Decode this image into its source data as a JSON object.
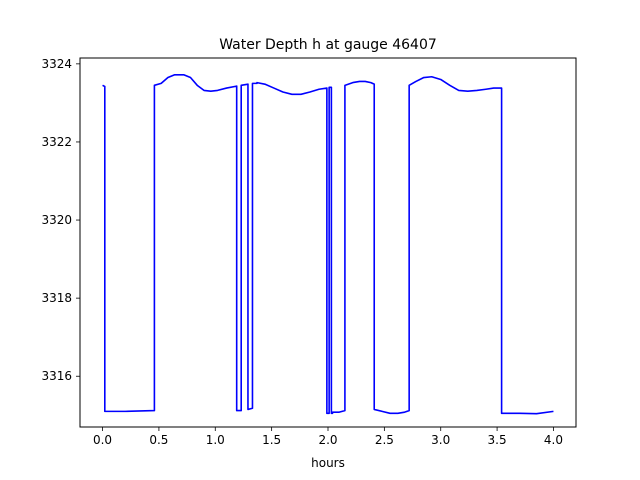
{
  "chart_data": {
    "type": "line",
    "title": "Water Depth h at gauge 46407",
    "xlabel": "hours",
    "ylabel": "",
    "xlim": [
      -0.2,
      4.2
    ],
    "ylim": [
      3314.7,
      3324.15
    ],
    "x_ticks": [
      0.0,
      0.5,
      1.0,
      1.5,
      2.0,
      2.5,
      3.0,
      3.5,
      4.0
    ],
    "x_tick_labels": [
      "0.0",
      "0.5",
      "1.0",
      "1.5",
      "2.0",
      "2.5",
      "3.0",
      "3.5",
      "4.0"
    ],
    "y_ticks": [
      3316,
      3318,
      3320,
      3322,
      3324
    ],
    "y_tick_labels": [
      "3316",
      "3318",
      "3320",
      "3322",
      "3324"
    ],
    "grid": false,
    "legend": "none",
    "series": [
      {
        "color": "#0000ff",
        "x": [
          0.0,
          0.02,
          0.02,
          0.2,
          0.46,
          0.46,
          0.52,
          0.58,
          0.64,
          0.72,
          0.78,
          0.84,
          0.9,
          0.96,
          1.02,
          1.1,
          1.19,
          1.19,
          1.23,
          1.23,
          1.29,
          1.29,
          1.33,
          1.33,
          1.37,
          1.37,
          1.44,
          1.52,
          1.6,
          1.68,
          1.76,
          1.84,
          1.92,
          1.99,
          1.99,
          2.01,
          2.01,
          2.03,
          2.03,
          2.04,
          2.04,
          2.1,
          2.15,
          2.15,
          2.22,
          2.28,
          2.33,
          2.38,
          2.41,
          2.41,
          2.48,
          2.55,
          2.62,
          2.68,
          2.72,
          2.72,
          2.78,
          2.85,
          2.92,
          3.0,
          3.08,
          3.16,
          3.24,
          3.32,
          3.4,
          3.47,
          3.54,
          3.54,
          3.7,
          3.85,
          4.0
        ],
        "y": [
          3323.45,
          3323.42,
          3315.1,
          3315.1,
          3315.12,
          3323.45,
          3323.5,
          3323.65,
          3323.72,
          3323.72,
          3323.65,
          3323.45,
          3323.32,
          3323.3,
          3323.32,
          3323.38,
          3323.43,
          3315.12,
          3315.12,
          3323.45,
          3323.48,
          3315.15,
          3315.18,
          3323.5,
          3323.5,
          3323.52,
          3323.48,
          3323.38,
          3323.28,
          3323.22,
          3323.22,
          3323.28,
          3323.35,
          3323.38,
          3315.05,
          3315.05,
          3323.4,
          3323.4,
          3315.05,
          3315.05,
          3315.08,
          3315.08,
          3315.12,
          3323.45,
          3323.52,
          3323.55,
          3323.55,
          3323.52,
          3323.48,
          3315.15,
          3315.1,
          3315.05,
          3315.05,
          3315.08,
          3315.12,
          3323.45,
          3323.55,
          3323.65,
          3323.67,
          3323.6,
          3323.45,
          3323.32,
          3323.3,
          3323.32,
          3323.35,
          3323.38,
          3323.38,
          3315.05,
          3315.05,
          3315.04,
          3315.1
        ]
      }
    ]
  }
}
